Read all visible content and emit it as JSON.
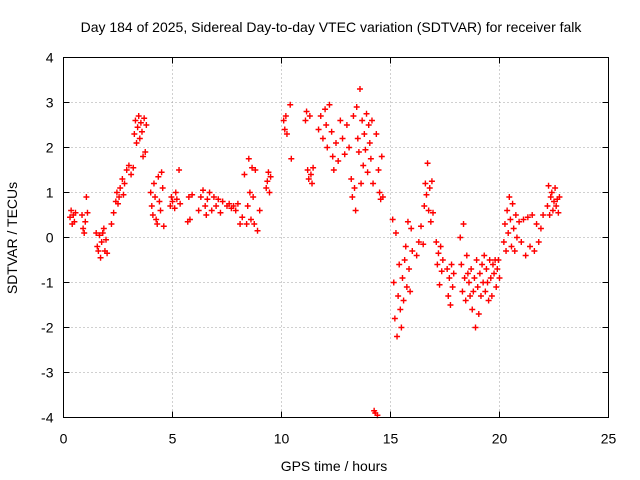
{
  "chart_data": {
    "type": "scatter",
    "title": "Day 184 of 2025, Sidereal Day-to-day VTEC variation (SDTVAR) for receiver falk",
    "xlabel": "GPS time / hours",
    "ylabel": "SDTVAR / TECUs",
    "xlim": [
      0,
      25
    ],
    "ylim": [
      -4,
      4
    ],
    "grid": true,
    "marker": "+",
    "color": "#ff0000",
    "xticks": [
      "0",
      "5",
      "10",
      "15",
      "20",
      "25"
    ],
    "yticks": [
      "4",
      "3",
      "2",
      "1",
      "0",
      "-1",
      "-2",
      "-3",
      "-4"
    ],
    "series": [
      {
        "name": "SDTVAR",
        "points": [
          [
            0.3,
            0.45
          ],
          [
            0.35,
            0.6
          ],
          [
            0.4,
            0.3
          ],
          [
            0.45,
            0.5
          ],
          [
            0.5,
            0.35
          ],
          [
            0.55,
            0.55
          ],
          [
            0.85,
            0.5
          ],
          [
            0.9,
            0.2
          ],
          [
            0.95,
            0.1
          ],
          [
            1.0,
            0.35
          ],
          [
            1.05,
            0.9
          ],
          [
            1.1,
            0.55
          ],
          [
            1.5,
            0.1
          ],
          [
            1.55,
            -0.2
          ],
          [
            1.6,
            -0.3
          ],
          [
            1.65,
            0.05
          ],
          [
            1.7,
            -0.45
          ],
          [
            1.75,
            -0.1
          ],
          [
            1.8,
            0.1
          ],
          [
            1.85,
            0.2
          ],
          [
            1.9,
            -0.3
          ],
          [
            1.95,
            -0.05
          ],
          [
            2.0,
            -0.35
          ],
          [
            2.2,
            0.3
          ],
          [
            2.3,
            0.55
          ],
          [
            2.4,
            0.8
          ],
          [
            2.45,
            1.0
          ],
          [
            2.5,
            0.75
          ],
          [
            2.55,
            0.9
          ],
          [
            2.6,
            1.1
          ],
          [
            2.7,
            1.3
          ],
          [
            2.75,
            0.95
          ],
          [
            2.8,
            1.2
          ],
          [
            2.9,
            1.5
          ],
          [
            3.0,
            1.6
          ],
          [
            3.1,
            1.4
          ],
          [
            3.2,
            1.55
          ],
          [
            3.25,
            2.3
          ],
          [
            3.3,
            2.6
          ],
          [
            3.35,
            2.1
          ],
          [
            3.4,
            2.45
          ],
          [
            3.45,
            2.7
          ],
          [
            3.5,
            2.2
          ],
          [
            3.55,
            2.55
          ],
          [
            3.6,
            2.35
          ],
          [
            3.65,
            1.8
          ],
          [
            3.7,
            2.65
          ],
          [
            3.75,
            1.9
          ],
          [
            3.8,
            2.5
          ],
          [
            4.0,
            1.0
          ],
          [
            4.05,
            0.7
          ],
          [
            4.1,
            0.5
          ],
          [
            4.15,
            1.2
          ],
          [
            4.2,
            0.9
          ],
          [
            4.25,
            0.4
          ],
          [
            4.3,
            0.3
          ],
          [
            4.35,
            1.35
          ],
          [
            4.4,
            0.8
          ],
          [
            4.45,
            0.6
          ],
          [
            4.5,
            1.45
          ],
          [
            4.55,
            1.1
          ],
          [
            4.6,
            0.25
          ],
          [
            4.9,
            0.7
          ],
          [
            4.95,
            0.9
          ],
          [
            5.0,
            0.8
          ],
          [
            5.1,
            0.65
          ],
          [
            5.15,
            1.0
          ],
          [
            5.2,
            0.85
          ],
          [
            5.3,
            1.5
          ],
          [
            5.35,
            0.75
          ],
          [
            5.7,
            0.35
          ],
          [
            5.75,
            0.9
          ],
          [
            5.8,
            0.4
          ],
          [
            5.9,
            0.95
          ],
          [
            6.2,
            0.6
          ],
          [
            6.3,
            0.9
          ],
          [
            6.4,
            1.05
          ],
          [
            6.5,
            0.7
          ],
          [
            6.55,
            0.5
          ],
          [
            6.6,
            0.85
          ],
          [
            6.7,
            1.0
          ],
          [
            6.8,
            0.6
          ],
          [
            6.9,
            0.9
          ],
          [
            7.0,
            0.7
          ],
          [
            7.1,
            0.85
          ],
          [
            7.2,
            0.55
          ],
          [
            7.3,
            0.8
          ],
          [
            7.5,
            0.7
          ],
          [
            7.6,
            0.75
          ],
          [
            7.7,
            0.65
          ],
          [
            7.8,
            0.7
          ],
          [
            7.9,
            0.6
          ],
          [
            8.0,
            0.75
          ],
          [
            8.1,
            0.3
          ],
          [
            8.2,
            0.45
          ],
          [
            8.3,
            1.4
          ],
          [
            8.4,
            0.3
          ],
          [
            8.45,
            0.7
          ],
          [
            8.5,
            1.75
          ],
          [
            8.55,
            1.0
          ],
          [
            8.6,
            0.4
          ],
          [
            8.65,
            1.55
          ],
          [
            8.7,
            0.9
          ],
          [
            8.75,
            0.3
          ],
          [
            8.8,
            1.5
          ],
          [
            8.9,
            0.15
          ],
          [
            9.0,
            0.6
          ],
          [
            9.3,
            1.1
          ],
          [
            9.35,
            1.25
          ],
          [
            9.4,
            1.45
          ],
          [
            9.45,
            1.0
          ],
          [
            9.5,
            1.35
          ],
          [
            10.1,
            2.6
          ],
          [
            10.15,
            2.4
          ],
          [
            10.2,
            2.7
          ],
          [
            10.25,
            2.3
          ],
          [
            10.4,
            2.95
          ],
          [
            10.45,
            1.75
          ],
          [
            11.1,
            2.6
          ],
          [
            11.15,
            2.8
          ],
          [
            11.2,
            1.5
          ],
          [
            11.25,
            1.3
          ],
          [
            11.3,
            2.7
          ],
          [
            11.35,
            1.4
          ],
          [
            11.4,
            1.2
          ],
          [
            11.45,
            1.55
          ],
          [
            11.7,
            2.4
          ],
          [
            11.8,
            2.7
          ],
          [
            11.9,
            2.2
          ],
          [
            12.0,
            2.85
          ],
          [
            12.05,
            2.5
          ],
          [
            12.1,
            2.0
          ],
          [
            12.2,
            2.95
          ],
          [
            12.3,
            2.35
          ],
          [
            12.35,
            1.8
          ],
          [
            12.4,
            1.5
          ],
          [
            12.5,
            2.1
          ],
          [
            12.6,
            1.7
          ],
          [
            12.7,
            2.6
          ],
          [
            12.8,
            2.2
          ],
          [
            12.9,
            1.85
          ],
          [
            13.0,
            2.5
          ],
          [
            13.1,
            2.0
          ],
          [
            13.2,
            1.3
          ],
          [
            13.25,
            0.9
          ],
          [
            13.3,
            2.7
          ],
          [
            13.35,
            1.1
          ],
          [
            13.4,
            0.6
          ],
          [
            13.45,
            2.9
          ],
          [
            13.5,
            2.2
          ],
          [
            13.55,
            1.9
          ],
          [
            13.6,
            3.3
          ],
          [
            13.65,
            1.2
          ],
          [
            13.7,
            2.6
          ],
          [
            13.75,
            1.6
          ],
          [
            13.8,
            2.3
          ],
          [
            13.85,
            1.95
          ],
          [
            13.9,
            2.75
          ],
          [
            13.95,
            1.45
          ],
          [
            14.0,
            2.5
          ],
          [
            14.05,
            2.1
          ],
          [
            14.1,
            1.75
          ],
          [
            14.15,
            2.6
          ],
          [
            14.2,
            1.2
          ],
          [
            14.25,
            -3.85
          ],
          [
            14.3,
            -3.9
          ],
          [
            14.35,
            2.3
          ],
          [
            14.4,
            -3.95
          ],
          [
            14.45,
            1.5
          ],
          [
            14.5,
            1.0
          ],
          [
            14.55,
            0.85
          ],
          [
            14.6,
            1.8
          ],
          [
            14.65,
            0.9
          ],
          [
            15.1,
            0.4
          ],
          [
            15.15,
            -1.0
          ],
          [
            15.2,
            -1.8
          ],
          [
            15.25,
            0.1
          ],
          [
            15.3,
            -2.2
          ],
          [
            15.35,
            -1.3
          ],
          [
            15.4,
            -0.6
          ],
          [
            15.45,
            -1.6
          ],
          [
            15.5,
            -2.0
          ],
          [
            15.55,
            -0.9
          ],
          [
            15.6,
            -1.4
          ],
          [
            15.65,
            -0.5
          ],
          [
            15.7,
            -0.2
          ],
          [
            15.75,
            -1.1
          ],
          [
            15.8,
            0.35
          ],
          [
            15.85,
            -0.7
          ],
          [
            15.9,
            -1.2
          ],
          [
            15.95,
            0.2
          ],
          [
            16.0,
            -0.3
          ],
          [
            16.2,
            -0.4
          ],
          [
            16.3,
            -0.1
          ],
          [
            16.4,
            0.25
          ],
          [
            16.5,
            -0.15
          ],
          [
            16.55,
            0.7
          ],
          [
            16.6,
            1.2
          ],
          [
            16.65,
            0.95
          ],
          [
            16.7,
            1.65
          ],
          [
            16.75,
            0.6
          ],
          [
            16.8,
            1.1
          ],
          [
            16.85,
            0.35
          ],
          [
            16.9,
            1.25
          ],
          [
            16.95,
            0.55
          ],
          [
            17.1,
            -0.1
          ],
          [
            17.15,
            -0.6
          ],
          [
            17.2,
            -0.35
          ],
          [
            17.25,
            -1.05
          ],
          [
            17.3,
            -0.2
          ],
          [
            17.35,
            -0.75
          ],
          [
            17.4,
            -0.5
          ],
          [
            17.6,
            -0.7
          ],
          [
            17.65,
            -1.3
          ],
          [
            17.7,
            -0.9
          ],
          [
            17.75,
            -1.5
          ],
          [
            17.8,
            -0.6
          ],
          [
            17.85,
            -1.1
          ],
          [
            17.9,
            -0.8
          ],
          [
            18.2,
            0.0
          ],
          [
            18.25,
            -0.6
          ],
          [
            18.3,
            -1.2
          ],
          [
            18.35,
            0.3
          ],
          [
            18.4,
            -0.9
          ],
          [
            18.45,
            -1.4
          ],
          [
            18.5,
            -0.4
          ],
          [
            18.55,
            -0.8
          ],
          [
            18.6,
            -1.0
          ],
          [
            18.65,
            -1.3
          ],
          [
            18.7,
            -0.7
          ],
          [
            18.75,
            -1.6
          ],
          [
            18.8,
            -1.2
          ],
          [
            18.85,
            -0.9
          ],
          [
            18.9,
            -2.0
          ],
          [
            18.95,
            -0.5
          ],
          [
            19.0,
            -1.1
          ],
          [
            19.05,
            -1.7
          ],
          [
            19.1,
            -0.8
          ],
          [
            19.15,
            -1.3
          ],
          [
            19.2,
            -0.6
          ],
          [
            19.25,
            -1.0
          ],
          [
            19.3,
            -0.4
          ],
          [
            19.35,
            -1.2
          ],
          [
            19.4,
            -0.7
          ],
          [
            19.45,
            -1.0
          ],
          [
            19.5,
            -1.4
          ],
          [
            19.55,
            -0.5
          ],
          [
            19.6,
            -0.9
          ],
          [
            19.65,
            -1.3
          ],
          [
            19.7,
            -0.6
          ],
          [
            19.75,
            -0.8
          ],
          [
            19.8,
            -0.5
          ],
          [
            19.85,
            -1.1
          ],
          [
            19.9,
            -0.7
          ],
          [
            19.95,
            -0.5
          ],
          [
            20.0,
            -0.9
          ],
          [
            20.2,
            -0.1
          ],
          [
            20.25,
            0.3
          ],
          [
            20.3,
            -0.3
          ],
          [
            20.35,
            0.6
          ],
          [
            20.4,
            0.1
          ],
          [
            20.45,
            0.9
          ],
          [
            20.5,
            0.4
          ],
          [
            20.55,
            -0.2
          ],
          [
            20.6,
            0.75
          ],
          [
            20.65,
            0.2
          ],
          [
            20.7,
            -0.3
          ],
          [
            20.75,
            0.5
          ],
          [
            20.8,
            0.0
          ],
          [
            20.9,
            0.35
          ],
          [
            21.0,
            -0.1
          ],
          [
            21.1,
            0.4
          ],
          [
            21.2,
            -0.4
          ],
          [
            21.3,
            0.45
          ],
          [
            21.4,
            -0.2
          ],
          [
            21.5,
            0.5
          ],
          [
            21.6,
            -0.3
          ],
          [
            21.7,
            0.3
          ],
          [
            21.8,
            -0.1
          ],
          [
            21.9,
            0.2
          ],
          [
            22.0,
            0.5
          ],
          [
            22.2,
            0.7
          ],
          [
            22.25,
            1.15
          ],
          [
            22.3,
            0.5
          ],
          [
            22.35,
            0.9
          ],
          [
            22.4,
            1.0
          ],
          [
            22.45,
            0.6
          ],
          [
            22.5,
            0.8
          ],
          [
            22.55,
            1.1
          ],
          [
            22.6,
            0.7
          ],
          [
            22.65,
            0.85
          ],
          [
            22.7,
            0.55
          ],
          [
            22.75,
            0.9
          ]
        ]
      }
    ]
  }
}
